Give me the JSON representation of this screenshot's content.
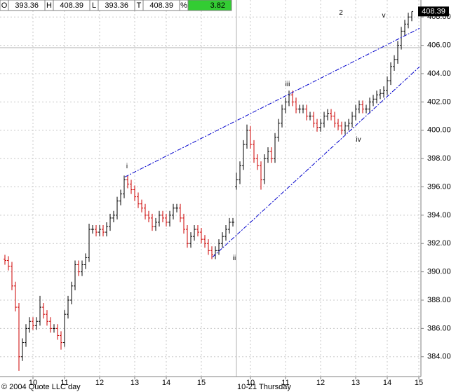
{
  "chart_data": {
    "type": "ohlc",
    "header": [
      {
        "label": "O",
        "value": 393.36
      },
      {
        "label": "H",
        "value": 408.39
      },
      {
        "label": "L",
        "value": 393.36
      },
      {
        "label": "T",
        "value": 408.39
      },
      {
        "label": "%",
        "value": 3.82
      }
    ],
    "last_price": 408.39,
    "footer_left": "© 2004 Quote LLC day",
    "session_label": "10-21 Thursday",
    "up_color": "#000000",
    "down_color": "#cc0000",
    "trend_color": "#0000cc",
    "grid": true,
    "ylim": [
      382.6,
      409.2
    ],
    "yticks": [
      {
        "value": 384,
        "label": "384.00"
      },
      {
        "value": 386,
        "label": "386.00"
      },
      {
        "value": 388,
        "label": "388.00"
      },
      {
        "value": 390,
        "label": "390.00"
      },
      {
        "value": 392,
        "label": "392.00"
      },
      {
        "value": 394,
        "label": "394.00"
      },
      {
        "value": 396,
        "label": "396.00"
      },
      {
        "value": 398,
        "label": "398.00"
      },
      {
        "value": 400,
        "label": "400.00"
      },
      {
        "value": 402,
        "label": "402.00"
      },
      {
        "value": 404,
        "label": "404.00"
      },
      {
        "value": 406,
        "label": "406.00"
      },
      {
        "value": 408,
        "label": "408.00"
      }
    ],
    "xlim": [
      -1.4,
      118.6
    ],
    "xticks": [
      {
        "value": 8,
        "label": "10"
      },
      {
        "value": 17,
        "label": "11"
      },
      {
        "value": 27,
        "label": "12"
      },
      {
        "value": 37,
        "label": "13"
      },
      {
        "value": 46,
        "label": "14"
      },
      {
        "value": 56,
        "label": "15"
      },
      {
        "value": 70,
        "label": "10"
      },
      {
        "value": 80,
        "label": "11"
      },
      {
        "value": 90,
        "label": "12"
      },
      {
        "value": 100,
        "label": "13"
      },
      {
        "value": 109,
        "label": "14"
      },
      {
        "value": 118,
        "label": "15"
      }
    ],
    "open": [
      390.9,
      390.8,
      390.4,
      389.0,
      387.5,
      384.0,
      385.0,
      386.0,
      386.5,
      386.2,
      386.5,
      387.5,
      387.0,
      386.5,
      386.0,
      386.0,
      385.5,
      385.0,
      387.0,
      388.0,
      389.0,
      390.5,
      390.0,
      390.5,
      391.0,
      393.0,
      393.0,
      392.8,
      393.0,
      392.8,
      393.2,
      393.8,
      394.0,
      395.0,
      395.5,
      396.5,
      396.2,
      395.8,
      395.3,
      394.8,
      394.5,
      394.0,
      393.8,
      393.2,
      393.5,
      394.0,
      393.8,
      393.5,
      394.0,
      394.5,
      394.5,
      393.8,
      393.0,
      392.0,
      392.5,
      393.0,
      392.8,
      392.3,
      392.0,
      391.5,
      391.2,
      391.5,
      392.0,
      392.5,
      393.0,
      393.5,
      396.0,
      396.5,
      397.5,
      399.0,
      400.0,
      399.0,
      398.0,
      397.5,
      396.5,
      398.0,
      398.5,
      398.0,
      399.5,
      400.5,
      401.5,
      402.0,
      402.5,
      402.0,
      401.5,
      401.5,
      401.5,
      401.0,
      401.0,
      400.5,
      400.2,
      400.5,
      401.0,
      401.2,
      401.0,
      400.5,
      400.3,
      400.0,
      400.3,
      400.5,
      401.0,
      401.5,
      401.8,
      401.5,
      401.5,
      402.0,
      402.2,
      402.5,
      402.6,
      402.8,
      403.5,
      404.5,
      405.0,
      406.0,
      407.0,
      407.5,
      408.0
    ],
    "high": [
      391.2,
      391.1,
      390.7,
      389.3,
      387.8,
      385.3,
      386.3,
      386.8,
      386.8,
      386.8,
      388.3,
      387.8,
      387.3,
      386.8,
      386.3,
      386.3,
      385.8,
      387.3,
      388.3,
      389.3,
      390.8,
      390.8,
      390.8,
      391.3,
      393.4,
      393.3,
      393.3,
      393.3,
      393.3,
      393.5,
      394.1,
      394.3,
      395.3,
      395.8,
      396.8,
      396.8,
      396.5,
      396.1,
      395.6,
      395.1,
      394.8,
      394.3,
      394.1,
      393.8,
      394.3,
      394.3,
      394.1,
      394.3,
      394.8,
      394.8,
      394.8,
      394.1,
      393.3,
      392.8,
      393.3,
      393.3,
      393.1,
      392.6,
      392.3,
      391.8,
      391.8,
      392.3,
      392.8,
      393.3,
      393.8,
      393.8,
      397.0,
      397.8,
      399.3,
      400.4,
      400.3,
      399.3,
      398.3,
      397.8,
      398.3,
      398.8,
      398.8,
      399.8,
      400.8,
      401.8,
      402.3,
      402.8,
      402.8,
      402.3,
      401.8,
      401.8,
      401.8,
      401.3,
      401.3,
      400.8,
      400.8,
      401.3,
      401.5,
      401.5,
      401.3,
      400.8,
      400.6,
      400.6,
      400.8,
      401.3,
      401.8,
      402.1,
      402.1,
      401.8,
      402.3,
      402.5,
      402.8,
      402.9,
      403.1,
      403.8,
      404.8,
      405.3,
      406.3,
      407.3,
      407.8,
      408.3,
      408.39
    ],
    "low": [
      390.5,
      390.1,
      388.7,
      387.2,
      383.0,
      383.7,
      384.7,
      385.7,
      385.9,
      385.9,
      386.2,
      386.7,
      386.2,
      385.7,
      385.7,
      385.2,
      384.5,
      384.7,
      386.7,
      387.7,
      388.7,
      389.7,
      389.7,
      390.2,
      390.7,
      392.7,
      392.5,
      392.5,
      392.5,
      392.5,
      392.9,
      393.5,
      393.7,
      394.7,
      395.2,
      395.9,
      395.5,
      395.0,
      394.5,
      394.2,
      393.7,
      393.5,
      392.9,
      392.9,
      393.2,
      393.5,
      393.2,
      393.2,
      393.7,
      394.2,
      393.5,
      392.7,
      391.7,
      391.7,
      392.2,
      392.5,
      392.0,
      391.7,
      391.2,
      390.9,
      390.9,
      391.2,
      391.7,
      392.2,
      392.7,
      393.2,
      395.8,
      396.2,
      397.2,
      398.7,
      398.7,
      397.7,
      397.2,
      395.8,
      396.2,
      397.7,
      397.7,
      397.7,
      399.2,
      400.2,
      401.2,
      401.7,
      401.7,
      401.2,
      401.2,
      401.2,
      400.7,
      400.7,
      400.2,
      399.9,
      399.9,
      400.2,
      400.7,
      400.7,
      400.2,
      400.0,
      399.7,
      399.7,
      400.0,
      400.2,
      400.7,
      401.2,
      401.2,
      401.2,
      401.2,
      401.7,
      401.9,
      402.2,
      402.3,
      402.5,
      403.2,
      404.2,
      404.7,
      405.7,
      406.7,
      407.2,
      407.7
    ],
    "close": [
      390.8,
      390.4,
      389.0,
      387.5,
      384.0,
      385.0,
      386.0,
      386.5,
      386.2,
      386.5,
      387.5,
      387.0,
      386.5,
      386.0,
      386.0,
      385.5,
      385.0,
      387.0,
      388.0,
      389.0,
      390.5,
      390.0,
      390.5,
      391.0,
      393.0,
      393.0,
      392.8,
      393.0,
      392.8,
      393.2,
      393.8,
      394.0,
      395.0,
      395.5,
      396.5,
      396.2,
      395.8,
      395.3,
      394.8,
      394.5,
      394.0,
      393.8,
      393.2,
      393.5,
      394.0,
      393.8,
      393.5,
      394.0,
      394.5,
      394.5,
      393.8,
      393.0,
      392.0,
      392.5,
      393.0,
      392.8,
      392.3,
      392.0,
      391.5,
      391.2,
      391.5,
      392.0,
      392.5,
      393.0,
      393.5,
      393.5,
      396.5,
      397.5,
      399.0,
      400.0,
      399.0,
      398.0,
      397.5,
      396.5,
      398.0,
      398.5,
      398.0,
      399.5,
      400.5,
      401.5,
      402.0,
      402.5,
      402.0,
      401.5,
      401.5,
      401.5,
      401.0,
      401.0,
      400.5,
      400.2,
      400.5,
      401.0,
      401.2,
      401.0,
      400.5,
      400.3,
      400.0,
      400.3,
      400.5,
      401.0,
      401.5,
      401.8,
      401.5,
      401.5,
      402.0,
      402.2,
      402.5,
      402.6,
      402.8,
      403.5,
      404.5,
      405.0,
      406.0,
      407.0,
      407.5,
      408.0,
      408.39
    ],
    "trendlines": [
      {
        "x": [
          34.2,
          118.2
        ],
        "y": [
          396.7,
          407.2
        ]
      },
      {
        "x": [
          59.2,
          118.2
        ],
        "y": [
          391.04,
          404.48
        ]
      }
    ],
    "annotations": [
      {
        "text": "i",
        "x": 34.8,
        "y": 397.45
      },
      {
        "text": "ii",
        "x": 65.4,
        "y": 390.95
      },
      {
        "text": "iii",
        "x": 80.6,
        "y": 403.24
      },
      {
        "text": "iv",
        "x": 100.8,
        "y": 399.32
      },
      {
        "text": "v",
        "x": 108,
        "y": 408.1
      },
      {
        "text": "2",
        "x": 95.8,
        "y": 408.3
      }
    ]
  }
}
